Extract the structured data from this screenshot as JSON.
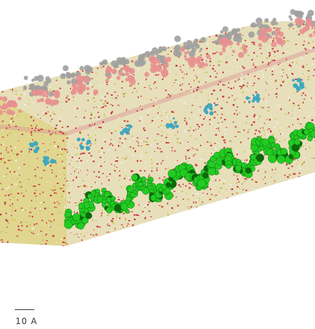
{
  "scene": {
    "scale_label": "10 A",
    "colors": {
      "background": "#ffffff",
      "water_red": "#c8323c",
      "water_white": "#eeeeee",
      "lipid_tail": "#c8c850",
      "headgroup_pink": "#e89090",
      "headgroup_gray": "#a0a0a0",
      "ion_cyan": "#40a8c0",
      "helix_green": "#22cc22",
      "helix_dark": "#0a6a0a"
    },
    "components": [
      "water",
      "lipid-tails",
      "headgroups-pink",
      "headgroups-gray",
      "cyan-molecules",
      "green-helix"
    ]
  }
}
